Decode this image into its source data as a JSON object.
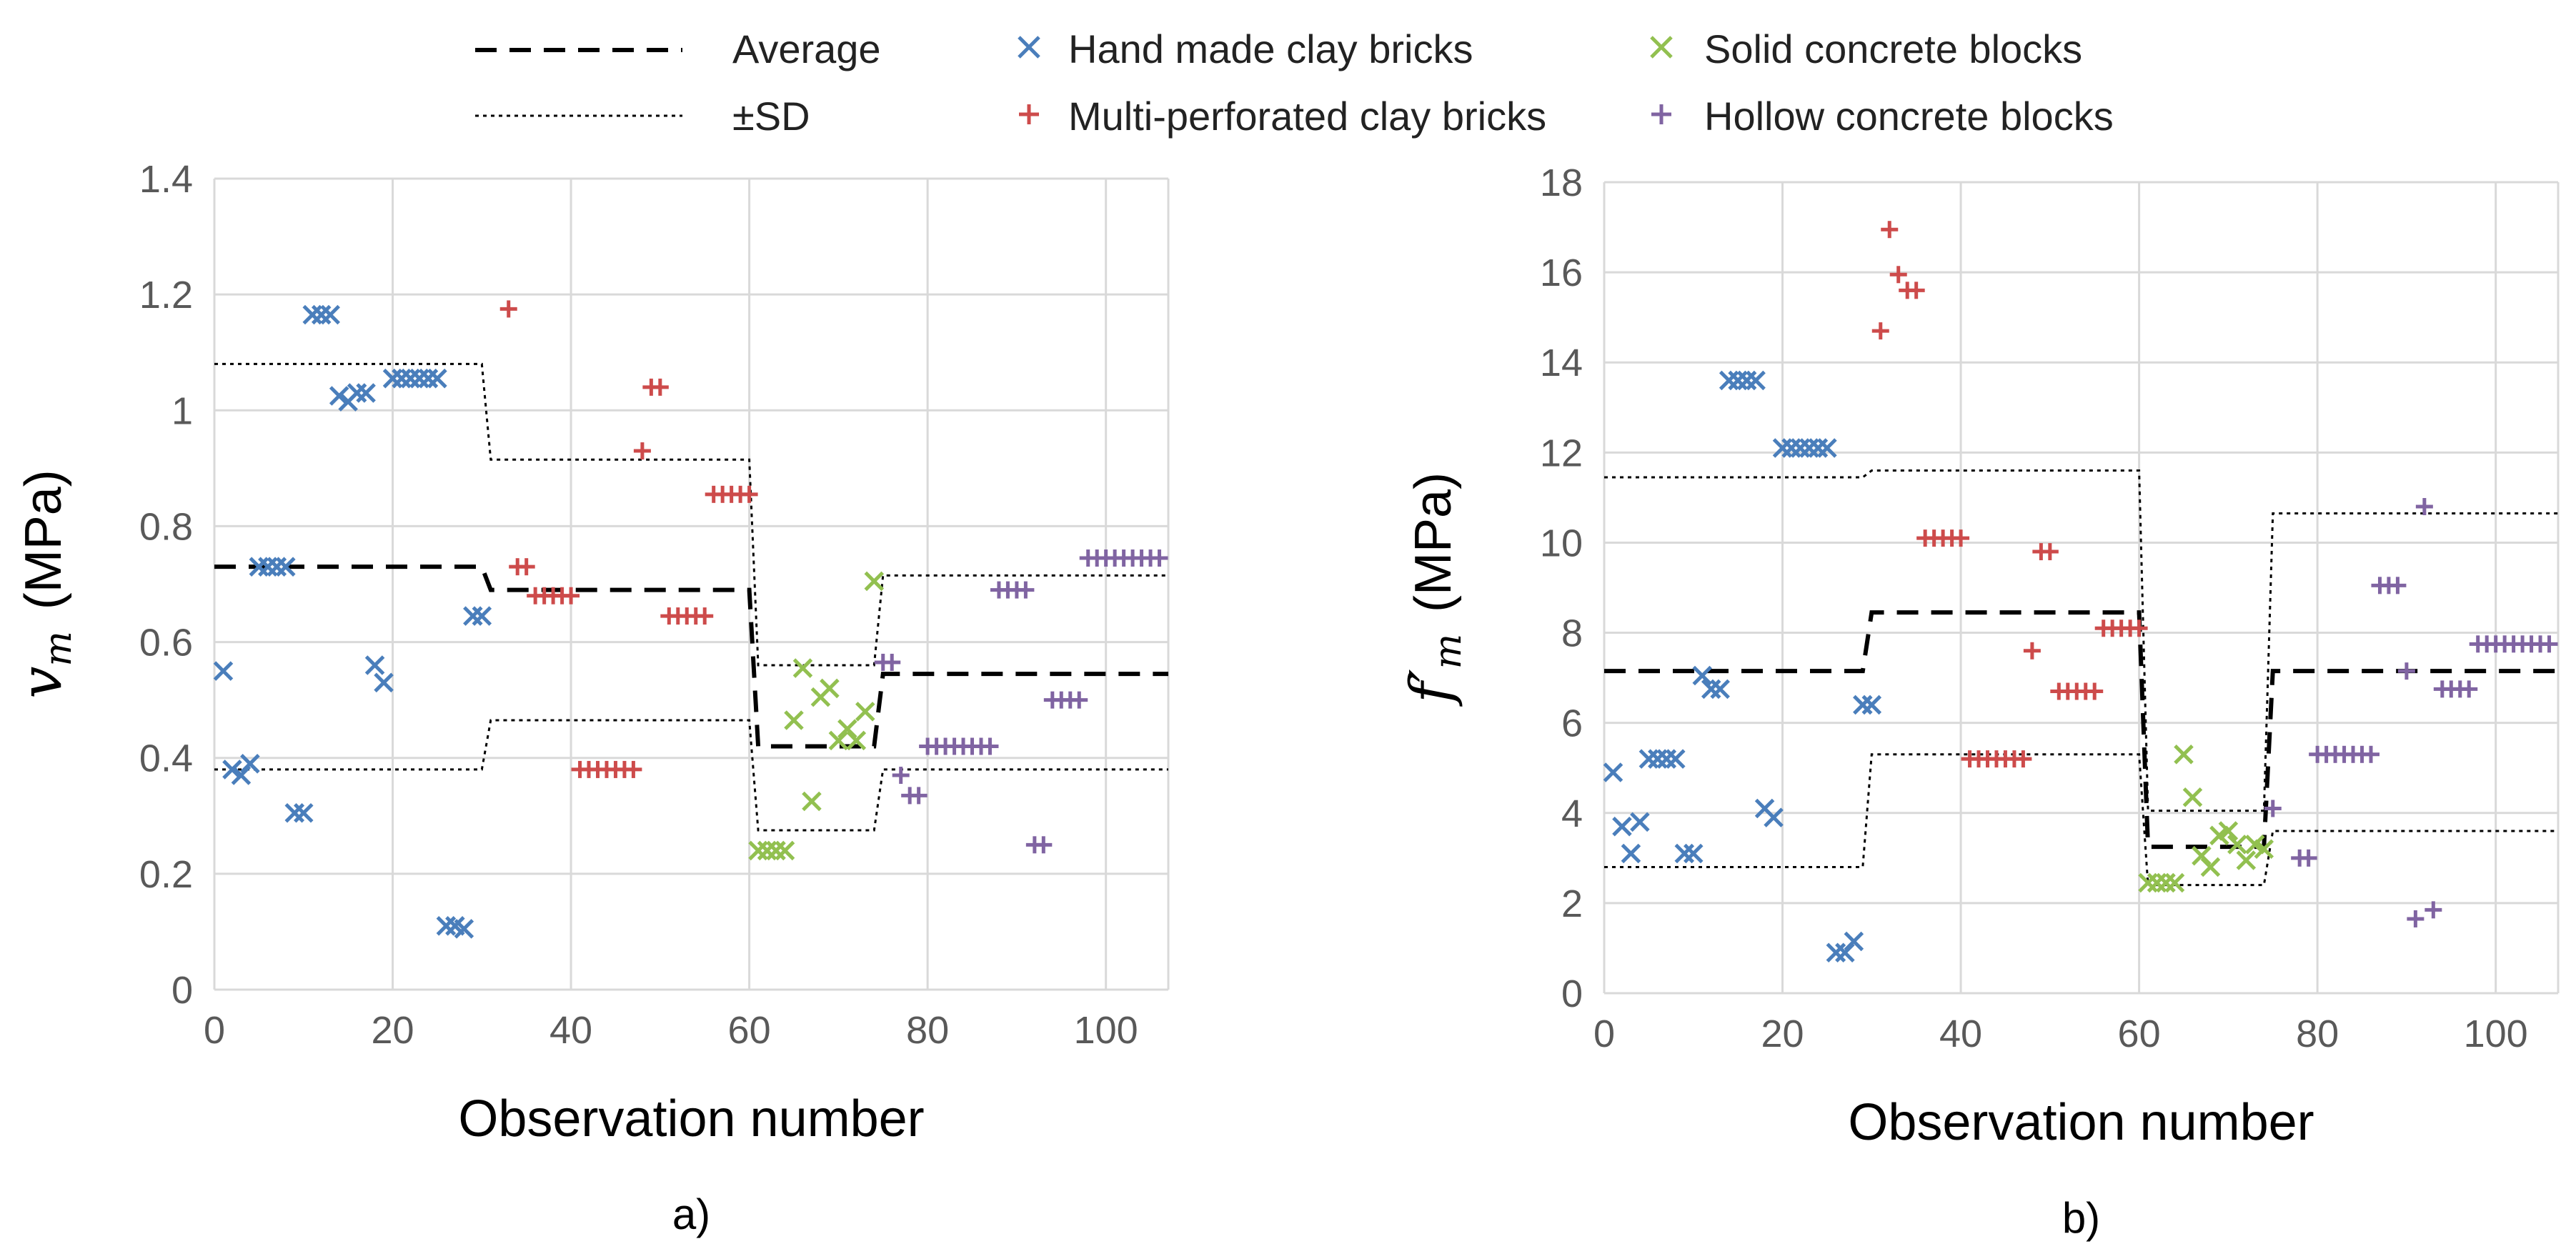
{
  "legend": {
    "average": "Average",
    "sd": "±SD",
    "hand_made": "Hand made clay bricks",
    "multi_perforated": "Multi-perforated clay bricks",
    "solid_concrete": "Solid concrete blocks",
    "hollow_concrete": "Hollow concrete blocks"
  },
  "colors": {
    "hand_made": "#4a7ebb",
    "multi_perforated": "#cd4b4b",
    "solid_concrete": "#92c050",
    "hollow_concrete": "#8064a2",
    "average": "#000000",
    "sd": "#000000"
  },
  "chart_data": [
    {
      "type": "scatter",
      "panel": "a)",
      "xlabel": "Observation number",
      "ylabel": {
        "symbol": "v",
        "subscript": "m",
        "unit": "(MPa)"
      },
      "xlim": [
        0,
        107
      ],
      "ylim": [
        0,
        1.4
      ],
      "xticks": [
        0,
        20,
        40,
        60,
        80,
        100
      ],
      "yticks": [
        0,
        0.2,
        0.4,
        0.6,
        0.8,
        1,
        1.2,
        1.4
      ],
      "ytick_labels": [
        "0",
        "0.2",
        "0.4",
        "0.6",
        "0.8",
        "1",
        "1.2",
        "1.4"
      ],
      "grid": true,
      "series": [
        {
          "key": "hand_made",
          "marker": "x",
          "points": [
            [
              1,
              0.55
            ],
            [
              2,
              0.38
            ],
            [
              3,
              0.37
            ],
            [
              4,
              0.39
            ],
            [
              5,
              0.73
            ],
            [
              6,
              0.73
            ],
            [
              7,
              0.73
            ],
            [
              8,
              0.73
            ],
            [
              9,
              0.305
            ],
            [
              10,
              0.305
            ],
            [
              11,
              1.165
            ],
            [
              12,
              1.165
            ],
            [
              13,
              1.165
            ],
            [
              14,
              1.025
            ],
            [
              15,
              1.015
            ],
            [
              16,
              1.03
            ],
            [
              17,
              1.03
            ],
            [
              18,
              0.56
            ],
            [
              19,
              0.53
            ],
            [
              20,
              1.055
            ],
            [
              21,
              1.055
            ],
            [
              22,
              1.055
            ],
            [
              23,
              1.055
            ],
            [
              24,
              1.055
            ],
            [
              25,
              1.055
            ],
            [
              26,
              0.11
            ],
            [
              27,
              0.11
            ],
            [
              28,
              0.105
            ],
            [
              29,
              0.645
            ],
            [
              30,
              0.645
            ]
          ]
        },
        {
          "key": "multi_perforated",
          "marker": "+",
          "points": [
            [
              33,
              1.175
            ],
            [
              34,
              0.73
            ],
            [
              35,
              0.73
            ],
            [
              36,
              0.68
            ],
            [
              37,
              0.68
            ],
            [
              38,
              0.68
            ],
            [
              39,
              0.68
            ],
            [
              40,
              0.68
            ],
            [
              41,
              0.38
            ],
            [
              42,
              0.38
            ],
            [
              43,
              0.38
            ],
            [
              44,
              0.38
            ],
            [
              45,
              0.38
            ],
            [
              46,
              0.38
            ],
            [
              47,
              0.38
            ],
            [
              48,
              0.93
            ],
            [
              49,
              1.04
            ],
            [
              50,
              1.04
            ],
            [
              51,
              0.645
            ],
            [
              52,
              0.645
            ],
            [
              53,
              0.645
            ],
            [
              54,
              0.645
            ],
            [
              55,
              0.645
            ],
            [
              56,
              0.855
            ],
            [
              57,
              0.855
            ],
            [
              58,
              0.855
            ],
            [
              59,
              0.855
            ],
            [
              60,
              0.855
            ]
          ]
        },
        {
          "key": "solid_concrete",
          "marker": "x",
          "points": [
            [
              61,
              0.24
            ],
            [
              62,
              0.24
            ],
            [
              63,
              0.24
            ],
            [
              64,
              0.24
            ],
            [
              65,
              0.465
            ],
            [
              66,
              0.555
            ],
            [
              67,
              0.325
            ],
            [
              68,
              0.505
            ],
            [
              69,
              0.52
            ],
            [
              70,
              0.43
            ],
            [
              71,
              0.45
            ],
            [
              72,
              0.43
            ],
            [
              73,
              0.48
            ],
            [
              74,
              0.705
            ]
          ]
        },
        {
          "key": "hollow_concrete",
          "marker": "+",
          "points": [
            [
              75,
              0.565
            ],
            [
              76,
              0.565
            ],
            [
              77,
              0.37
            ],
            [
              78,
              0.335
            ],
            [
              79,
              0.335
            ],
            [
              80,
              0.42
            ],
            [
              81,
              0.42
            ],
            [
              82,
              0.42
            ],
            [
              83,
              0.42
            ],
            [
              84,
              0.42
            ],
            [
              85,
              0.42
            ],
            [
              86,
              0.42
            ],
            [
              87,
              0.42
            ],
            [
              88,
              0.69
            ],
            [
              89,
              0.69
            ],
            [
              90,
              0.69
            ],
            [
              91,
              0.69
            ],
            [
              92,
              0.25
            ],
            [
              93,
              0.25
            ],
            [
              94,
              0.5
            ],
            [
              95,
              0.5
            ],
            [
              96,
              0.5
            ],
            [
              97,
              0.5
            ],
            [
              98,
              0.745
            ],
            [
              99,
              0.745
            ],
            [
              100,
              0.745
            ],
            [
              101,
              0.745
            ],
            [
              102,
              0.745
            ],
            [
              103,
              0.745
            ],
            [
              104,
              0.745
            ],
            [
              105,
              0.745
            ],
            [
              106,
              0.745
            ]
          ]
        }
      ],
      "average": [
        [
          0,
          0.73
        ],
        [
          30,
          0.73
        ],
        [
          31,
          0.69
        ],
        [
          60,
          0.69
        ],
        [
          61,
          0.42
        ],
        [
          74,
          0.42
        ],
        [
          75,
          0.545
        ],
        [
          107,
          0.545
        ]
      ],
      "sd_upper": [
        [
          0,
          1.08
        ],
        [
          30,
          1.08
        ],
        [
          31,
          0.915
        ],
        [
          60,
          0.915
        ],
        [
          61,
          0.56
        ],
        [
          74,
          0.56
        ],
        [
          75,
          0.715
        ],
        [
          107,
          0.715
        ]
      ],
      "sd_lower": [
        [
          0,
          0.38
        ],
        [
          30,
          0.38
        ],
        [
          31,
          0.465
        ],
        [
          60,
          0.465
        ],
        [
          61,
          0.275
        ],
        [
          74,
          0.275
        ],
        [
          75,
          0.38
        ],
        [
          107,
          0.38
        ]
      ]
    },
    {
      "type": "scatter",
      "panel": "b)",
      "xlabel": "Observation number",
      "ylabel": {
        "symbol": "f′",
        "subscript": "m",
        "unit": "(MPa)"
      },
      "xlim": [
        0,
        107
      ],
      "ylim": [
        0,
        18
      ],
      "xticks": [
        0,
        20,
        40,
        60,
        80,
        100
      ],
      "yticks": [
        0,
        2,
        4,
        6,
        8,
        10,
        12,
        14,
        16,
        18
      ],
      "ytick_labels": [
        "0",
        "2",
        "4",
        "6",
        "8",
        "10",
        "12",
        "14",
        "16",
        "18"
      ],
      "grid": true,
      "series": [
        {
          "key": "hand_made",
          "marker": "x",
          "points": [
            [
              1,
              4.9
            ],
            [
              2,
              3.7
            ],
            [
              3,
              3.1
            ],
            [
              4,
              3.8
            ],
            [
              5,
              5.2
            ],
            [
              6,
              5.2
            ],
            [
              7,
              5.2
            ],
            [
              8,
              5.2
            ],
            [
              9,
              3.1
            ],
            [
              10,
              3.1
            ],
            [
              11,
              7.05
            ],
            [
              12,
              6.75
            ],
            [
              13,
              6.75
            ],
            [
              14,
              13.6
            ],
            [
              15,
              13.6
            ],
            [
              16,
              13.6
            ],
            [
              17,
              13.6
            ],
            [
              18,
              4.1
            ],
            [
              19,
              3.9
            ],
            [
              20,
              12.1
            ],
            [
              21,
              12.1
            ],
            [
              22,
              12.1
            ],
            [
              23,
              12.1
            ],
            [
              24,
              12.1
            ],
            [
              25,
              12.1
            ],
            [
              26,
              0.9
            ],
            [
              27,
              0.9
            ],
            [
              28,
              1.15
            ],
            [
              29,
              6.4
            ],
            [
              30,
              6.4
            ]
          ]
        },
        {
          "key": "multi_perforated",
          "marker": "+",
          "points": [
            [
              31,
              14.7
            ],
            [
              32,
              16.95
            ],
            [
              33,
              15.95
            ],
            [
              34,
              15.6
            ],
            [
              35,
              15.6
            ],
            [
              36,
              10.1
            ],
            [
              37,
              10.1
            ],
            [
              38,
              10.1
            ],
            [
              39,
              10.1
            ],
            [
              40,
              10.1
            ],
            [
              41,
              5.2
            ],
            [
              42,
              5.2
            ],
            [
              43,
              5.2
            ],
            [
              44,
              5.2
            ],
            [
              45,
              5.2
            ],
            [
              46,
              5.2
            ],
            [
              47,
              5.2
            ],
            [
              48,
              7.6
            ],
            [
              49,
              9.8
            ],
            [
              50,
              9.8
            ],
            [
              51,
              6.7
            ],
            [
              52,
              6.7
            ],
            [
              53,
              6.7
            ],
            [
              54,
              6.7
            ],
            [
              55,
              6.7
            ],
            [
              56,
              8.1
            ],
            [
              57,
              8.1
            ],
            [
              58,
              8.1
            ],
            [
              59,
              8.1
            ],
            [
              60,
              8.1
            ]
          ]
        },
        {
          "key": "solid_concrete",
          "marker": "x",
          "points": [
            [
              61,
              2.45
            ],
            [
              62,
              2.45
            ],
            [
              63,
              2.45
            ],
            [
              64,
              2.45
            ],
            [
              65,
              5.3
            ],
            [
              66,
              4.35
            ],
            [
              67,
              3.05
            ],
            [
              68,
              2.8
            ],
            [
              69,
              3.5
            ],
            [
              70,
              3.6
            ],
            [
              71,
              3.3
            ],
            [
              72,
              2.95
            ],
            [
              73,
              3.3
            ],
            [
              74,
              3.2
            ]
          ]
        },
        {
          "key": "hollow_concrete",
          "marker": "+",
          "points": [
            [
              75,
              4.1
            ],
            [
              78,
              3.0
            ],
            [
              79,
              3.0
            ],
            [
              80,
              5.3
            ],
            [
              81,
              5.3
            ],
            [
              82,
              5.3
            ],
            [
              83,
              5.3
            ],
            [
              84,
              5.3
            ],
            [
              85,
              5.3
            ],
            [
              86,
              5.3
            ],
            [
              87,
              9.05
            ],
            [
              88,
              9.05
            ],
            [
              89,
              9.05
            ],
            [
              90,
              7.15
            ],
            [
              91,
              1.65
            ],
            [
              92,
              10.8
            ],
            [
              93,
              1.85
            ],
            [
              94,
              6.75
            ],
            [
              95,
              6.75
            ],
            [
              96,
              6.75
            ],
            [
              97,
              6.75
            ],
            [
              98,
              7.75
            ],
            [
              99,
              7.75
            ],
            [
              100,
              7.75
            ],
            [
              101,
              7.75
            ],
            [
              102,
              7.75
            ],
            [
              103,
              7.75
            ],
            [
              104,
              7.75
            ],
            [
              105,
              7.75
            ],
            [
              106,
              7.75
            ]
          ]
        }
      ],
      "average": [
        [
          0,
          7.15
        ],
        [
          29,
          7.15
        ],
        [
          30,
          8.45
        ],
        [
          60,
          8.45
        ],
        [
          61,
          3.25
        ],
        [
          74,
          3.25
        ],
        [
          75,
          7.15
        ],
        [
          107,
          7.15
        ]
      ],
      "sd_upper": [
        [
          0,
          11.45
        ],
        [
          29,
          11.45
        ],
        [
          30,
          11.6
        ],
        [
          60,
          11.6
        ],
        [
          61,
          4.05
        ],
        [
          74,
          4.05
        ],
        [
          75,
          10.65
        ],
        [
          107,
          10.65
        ]
      ],
      "sd_lower": [
        [
          0,
          2.8
        ],
        [
          29,
          2.8
        ],
        [
          30,
          5.3
        ],
        [
          60,
          5.3
        ],
        [
          61,
          2.4
        ],
        [
          74,
          2.4
        ],
        [
          75,
          3.6
        ],
        [
          107,
          3.6
        ]
      ]
    }
  ]
}
